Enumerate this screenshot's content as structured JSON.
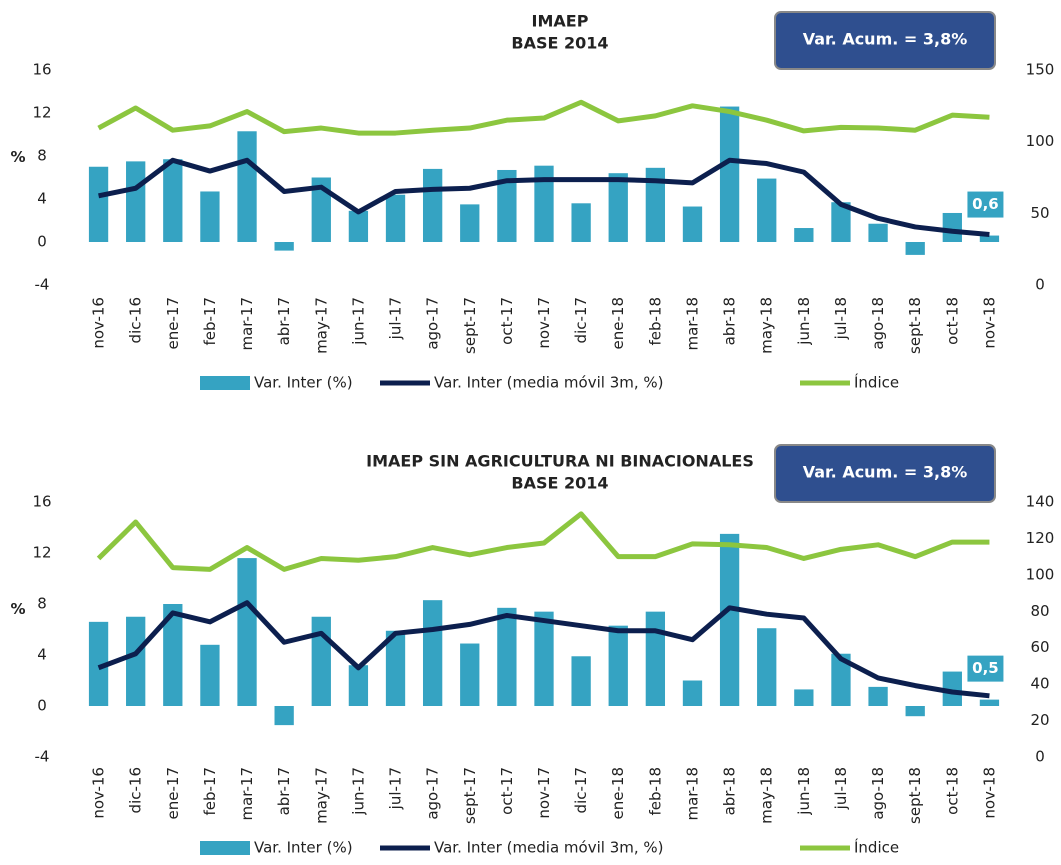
{
  "chart_data": [
    {
      "type": "bar-line",
      "title": "IMAEP",
      "subtitle": "BASE 2014",
      "annotation": "Var. Acum. = 3,8%",
      "y_label": "%",
      "categories": [
        "nov-16",
        "dic-16",
        "ene-17",
        "feb-17",
        "mar-17",
        "abr-17",
        "may-17",
        "jun-17",
        "jul-17",
        "ago-17",
        "sept-17",
        "oct-17",
        "nov-17",
        "dic-17",
        "ene-18",
        "feb-18",
        "mar-18",
        "abr-18",
        "may-18",
        "jun-18",
        "jul-18",
        "ago-18",
        "sept-18",
        "oct-18",
        "nov-18"
      ],
      "ylim": [
        -4,
        16
      ],
      "yticks": [
        -4,
        0,
        4,
        8,
        12,
        16
      ],
      "y2lim": [
        0,
        150
      ],
      "y2ticks": [
        0,
        50,
        100,
        150
      ],
      "series": [
        {
          "name": "Var. Inter (%)",
          "kind": "bar",
          "color": "#35a3c2",
          "values": [
            7.0,
            7.5,
            7.7,
            4.7,
            10.3,
            -0.8,
            6.0,
            2.9,
            4.4,
            6.8,
            3.5,
            6.7,
            7.1,
            3.6,
            6.4,
            6.9,
            3.3,
            12.6,
            5.9,
            1.3,
            3.7,
            1.7,
            -1.2,
            2.7,
            0.6
          ],
          "value_labels": [
            null,
            null,
            null,
            null,
            null,
            null,
            null,
            null,
            null,
            null,
            null,
            null,
            null,
            null,
            null,
            null,
            null,
            null,
            null,
            null,
            null,
            null,
            null,
            null,
            "0,6"
          ]
        },
        {
          "name": "Var. Inter (media móvil 3m, %)",
          "kind": "line",
          "color": "#0c1f4e",
          "values": [
            4.3,
            5.0,
            7.6,
            6.6,
            7.6,
            4.7,
            5.1,
            2.8,
            4.7,
            4.9,
            5.0,
            5.7,
            5.8,
            5.8,
            5.8,
            5.7,
            5.5,
            7.6,
            7.3,
            6.5,
            3.5,
            2.2,
            1.4,
            1.0,
            0.7
          ]
        },
        {
          "name": "Índice",
          "kind": "line",
          "axis": "y2",
          "color": "#8cc63f",
          "values": [
            109.5,
            123.5,
            108,
            111,
            121,
            107,
            109.5,
            106,
            106,
            108,
            109.5,
            115,
            116.5,
            127.5,
            114.5,
            118,
            125,
            121,
            115,
            107.5,
            110,
            109.5,
            108,
            118.5,
            117
          ]
        }
      ]
    },
    {
      "type": "bar-line",
      "title": "IMAEP SIN AGRICULTURA NI BINACIONALES",
      "subtitle": "BASE 2014",
      "annotation": "Var. Acum. = 3,8%",
      "y_label": "%",
      "categories": [
        "nov-16",
        "dic-16",
        "ene-17",
        "feb-17",
        "mar-17",
        "abr-17",
        "may-17",
        "jun-17",
        "jul-17",
        "ago-17",
        "sept-17",
        "oct-17",
        "nov-17",
        "dic-17",
        "ene-18",
        "feb-18",
        "mar-18",
        "abr-18",
        "may-18",
        "jun-18",
        "jul-18",
        "ago-18",
        "sept-18",
        "oct-18",
        "nov-18"
      ],
      "ylim": [
        -4,
        16
      ],
      "yticks": [
        -4,
        0,
        4,
        8,
        12,
        16
      ],
      "y2lim": [
        0,
        140
      ],
      "y2ticks": [
        0,
        20,
        40,
        60,
        80,
        100,
        120,
        140
      ],
      "series": [
        {
          "name": "Var. Inter (%)",
          "kind": "bar",
          "color": "#35a3c2",
          "values": [
            6.6,
            7.0,
            8.0,
            4.8,
            11.6,
            -1.5,
            7.0,
            3.2,
            5.9,
            8.3,
            4.9,
            7.7,
            7.4,
            3.9,
            6.3,
            7.4,
            2.0,
            13.5,
            6.1,
            1.3,
            4.1,
            1.5,
            -0.8,
            2.7,
            0.5
          ],
          "value_labels": [
            null,
            null,
            null,
            null,
            null,
            null,
            null,
            null,
            null,
            null,
            null,
            null,
            null,
            null,
            null,
            null,
            null,
            null,
            null,
            null,
            null,
            null,
            null,
            null,
            "0,5"
          ]
        },
        {
          "name": "Var. Inter (media móvil 3m, %)",
          "kind": "line",
          "color": "#0c1f4e",
          "values": [
            3.0,
            4.1,
            7.3,
            6.6,
            8.1,
            5.0,
            5.7,
            3.0,
            5.7,
            6.0,
            6.4,
            7.1,
            6.7,
            6.3,
            5.9,
            5.9,
            5.2,
            7.7,
            7.2,
            6.9,
            3.7,
            2.2,
            1.6,
            1.1,
            0.8
          ]
        },
        {
          "name": "Índice",
          "kind": "line",
          "axis": "y2",
          "color": "#8cc63f",
          "values": [
            109,
            129,
            104,
            103,
            115,
            103,
            109,
            108,
            110,
            115,
            111,
            115,
            117.5,
            133.5,
            110,
            110,
            117,
            116.5,
            115,
            109,
            114,
            116.5,
            110,
            118,
            118
          ]
        }
      ]
    }
  ]
}
